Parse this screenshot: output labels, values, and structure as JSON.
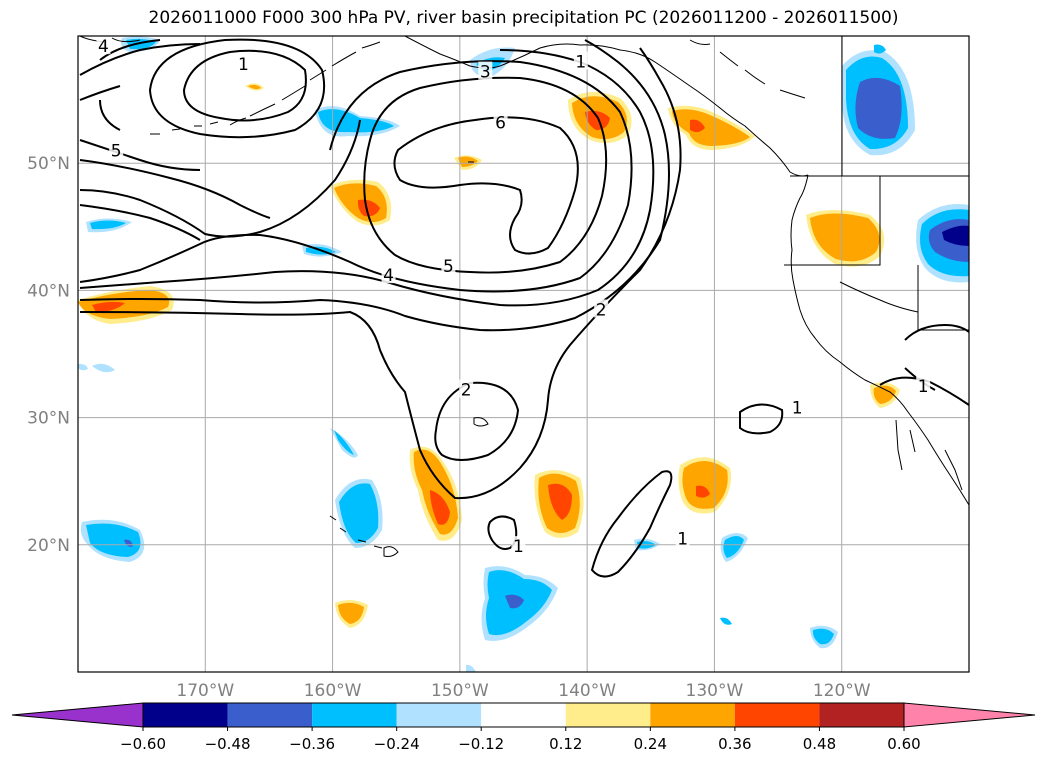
{
  "title": "2026011000 F000 300 hPa PV, river basin precipitation PC (2026011200 - 2026011500)",
  "map": {
    "lat_labels": [
      "50°N",
      "40°N",
      "30°N",
      "20°N"
    ],
    "lon_labels": [
      "170°W",
      "160°W",
      "150°W",
      "140°W",
      "130°W",
      "120°W"
    ],
    "lat_values": [
      50,
      40,
      30,
      20
    ],
    "lon_values": [
      -170,
      -160,
      -150,
      -140,
      -130,
      -120
    ],
    "extent": {
      "lon": [
        -180,
        -110
      ],
      "lat": [
        10,
        60
      ]
    },
    "grid": true,
    "tick_color": "#808080"
  },
  "contour_labels": [
    {
      "text": "1",
      "lon": -167,
      "lat": 57.8
    },
    {
      "text": "4",
      "lon": -178,
      "lat": 59.2
    },
    {
      "text": "5",
      "lon": -177,
      "lat": 51.0
    },
    {
      "text": "3",
      "lon": -148,
      "lat": 57.2
    },
    {
      "text": "1",
      "lon": -140.5,
      "lat": 58.0
    },
    {
      "text": "6",
      "lon": -146.8,
      "lat": 53.2
    },
    {
      "text": "4",
      "lon": -155.6,
      "lat": 41.2
    },
    {
      "text": "5",
      "lon": -150.9,
      "lat": 41.9
    },
    {
      "text": "2",
      "lon": -138.9,
      "lat": 38.5
    },
    {
      "text": "2",
      "lon": -149.5,
      "lat": 32.2
    },
    {
      "text": "1",
      "lon": -132.5,
      "lat": 20.5
    },
    {
      "text": "1",
      "lon": -145.4,
      "lat": 19.9
    },
    {
      "text": "1",
      "lon": -123.5,
      "lat": 30.8
    },
    {
      "text": "1",
      "lon": -113.6,
      "lat": 32.5
    }
  ],
  "colorbar": {
    "labels": [
      "-0.60",
      "-0.48",
      "-0.36",
      "-0.24",
      "-0.12",
      "0.12",
      "0.24",
      "0.36",
      "0.48",
      "0.60"
    ],
    "colors": [
      "#9932cc",
      "#00008b",
      "#3a5fcd",
      "#00bfff",
      "#b0e2ff",
      "#ffffff",
      "#ffec8b",
      "#ffa500",
      "#ff4500",
      "#b22222",
      "#ff82ab"
    ]
  }
}
